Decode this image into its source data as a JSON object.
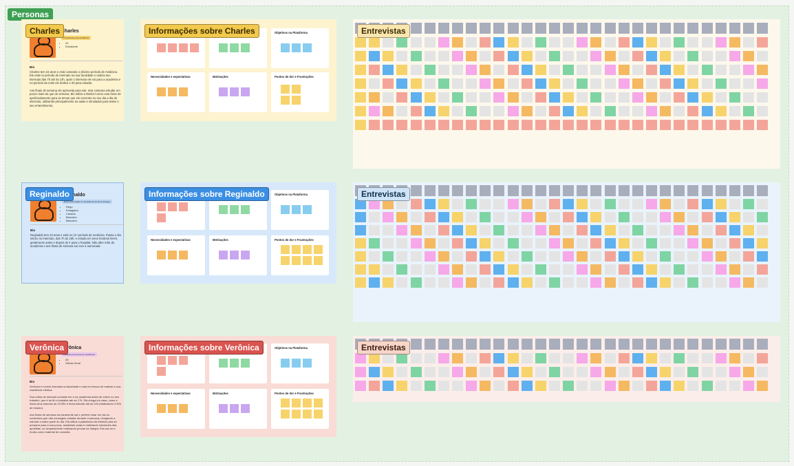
{
  "section_label": "Personas",
  "colors": {
    "yellow": "#f7d36b",
    "pink": "#f4a59a",
    "green": "#8fd9a3",
    "blue": "#88cdef",
    "orange": "#f5b962",
    "purple": "#c9a7f0",
    "gray": "#e4e4e4",
    "header": "#a9aebd",
    "magenta": "#f6a8e8",
    "mint": "#7fd4a4",
    "bright_blue": "#5fb0ee"
  },
  "personas": [
    {
      "name": "Charles",
      "card_name": "Charles",
      "subtitle": "Preparando para residência",
      "attributes": [
        "24",
        "Estudante"
      ],
      "bio_heading": "Bio",
      "bio": "Charles tem 24 anos e está cursando o décimo período de medicina. Ele está no período de internato na sua faculdade e realiza seu internato das 7h até às 14h, após o internato ele vai para a academia e no período da noite ele dedica 1:30 para estudar.\n\nAos finais de semana ele aproveita para sair, mas costuma estudar um pouco mais do que de semana. Ele utiliza a Medcel como uma fonte de aprofundamento para os temas que ele encontra no seu dia a dia do internato, utilizando principalmente as aulas e simulados para testar o seu entendimento.",
      "info_title": "Informações sobre Charles",
      "interviews_title": "Entrevistas",
      "quadrants": [
        "",
        "",
        "Objetivos na Plataforma",
        "Necessidades e expectativas",
        "Motivações",
        "Pontos de dor e Frustrações"
      ]
    },
    {
      "name": "Reginaldo",
      "card_name": "Reginaldo",
      "subtitle": "Busca aprovação em Residência de Dermatologia",
      "attributes": [
        "Rego",
        "Estagiário",
        "Casado",
        "Bancário",
        "Bancário"
      ],
      "bio_heading": "Bio",
      "bio": "Reginaldo tem 23 anos e está no 11º período de medicina. Passa o dia inteiro no internato, das 7h às 18h, e estuda em seus horários livres, geralmente antes e depois de ir para o hospital. Não abre mão da academia e aos finais de semana sai com a namorada.",
      "info_title": "Informações sobre Reginaldo",
      "interviews_title": "Entrevistas",
      "quadrants": [
        "",
        "",
        "Objetivos na Plataforma",
        "Necessidades e expectativas",
        "Motivações",
        "Pontos de dor e Frustrações"
      ]
    },
    {
      "name": "Verônica",
      "card_name": "Verônica",
      "subtitle": "Focando para prova de residência",
      "attributes": [
        "26",
        "Oferta Geral"
      ],
      "bio_heading": "Bio",
      "bio": "Verônica é recém-formada na faculdade e está em busca de realizar a sua residência médica.\n\nSua rotina de semana consiste em ir na academia antes de entrar no seu trabalho, que é às 8h e trabalha até as 17h. Ela chega em casa, come e inicia seus estudos às 19:30h e tenta estudar até as 22h (totalizando 2:30h de estudo).\n\nAos finais de semana ela raramente sai e prefere botar em dia os conteúdos que não conseguiu estudar durante a semana, chegando a estudar a maior parte do dia. Ela utiliza a plataforma da Medcel para se preparar para a sua prova, assistindo aulas e realizando simulados das apostilas, ou simplesmente realizando provas na íntegra. Ela usa os e-books como material de consulta.",
      "info_title": "Informações sobre Verônica",
      "interviews_title": "Entrevistas",
      "quadrants": [
        "",
        "",
        "Objetivos na Plataforma",
        "Necessidades e expectativas",
        "Motivações",
        "Pontos de dor e Frustrações"
      ]
    }
  ]
}
